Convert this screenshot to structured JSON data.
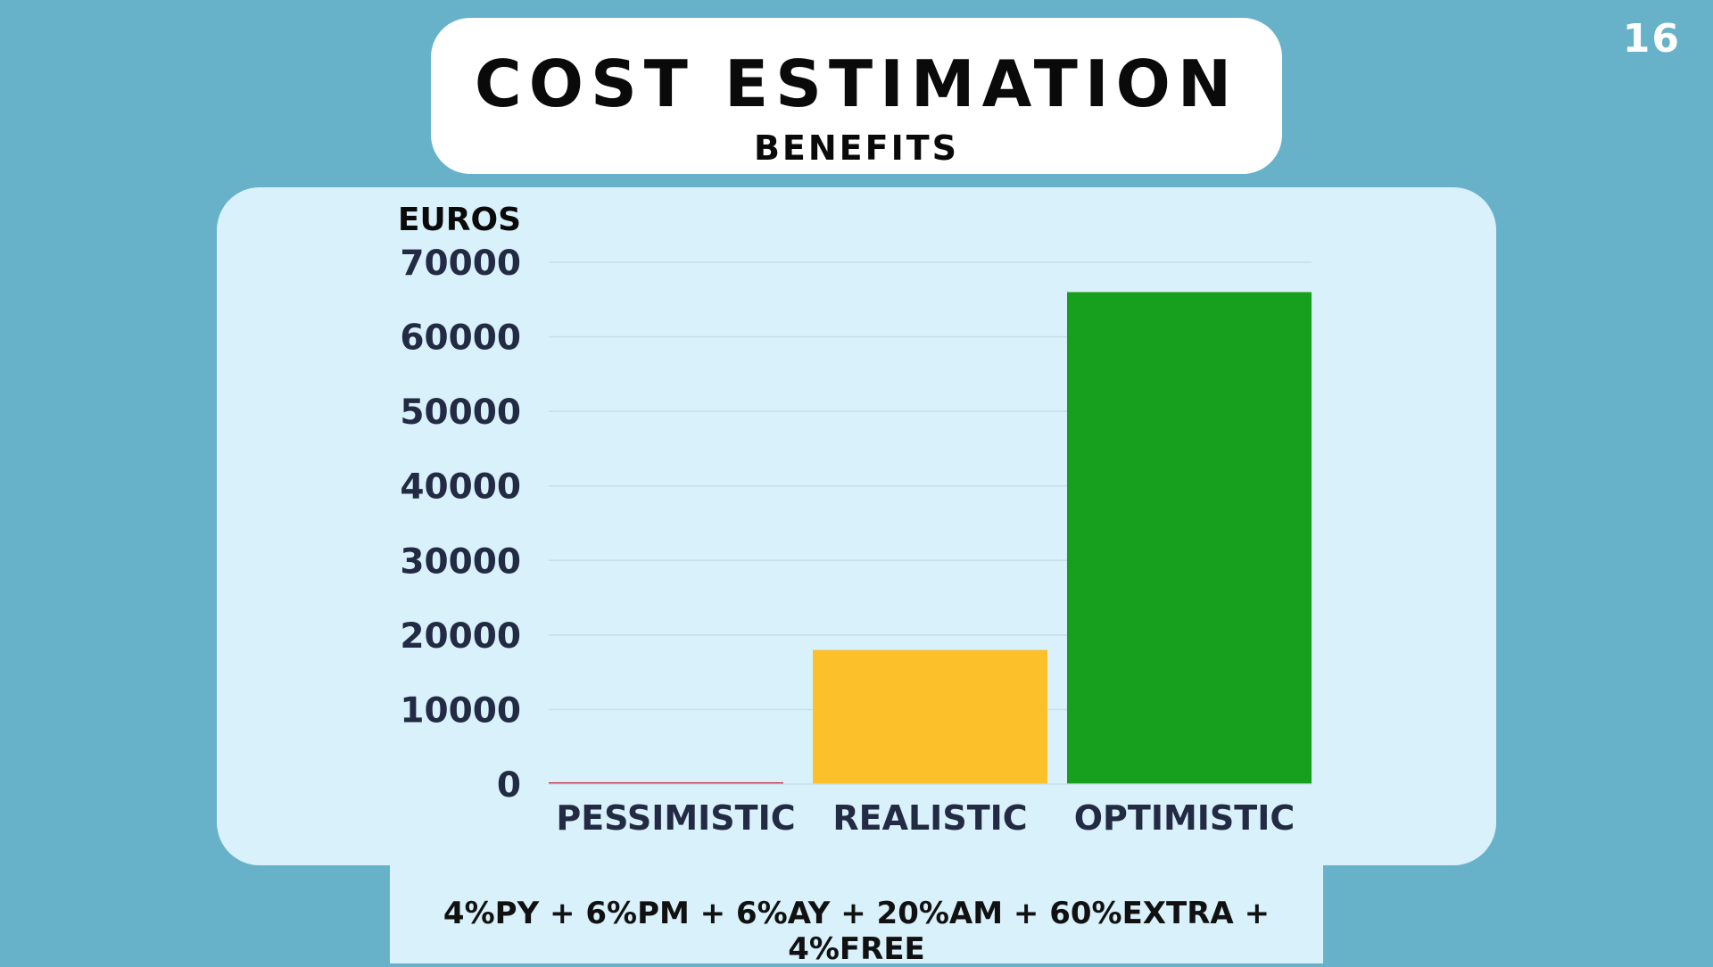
{
  "page_number": "16",
  "title": "COST ESTIMATION",
  "subtitle": "BENEFITS",
  "formula": "4%PY + 6%PM + 6%AY + 20%AM + 60%EXTRA + 4%FREE",
  "chart_data": {
    "type": "bar",
    "title": "",
    "xlabel": "",
    "ylabel": "EUROS",
    "categories": [
      "PESSIMISTIC",
      "REALISTIC",
      "OPTIMISTIC"
    ],
    "values": [
      150,
      18000,
      66000
    ],
    "colors": [
      "#c8233c",
      "#fbc02a",
      "#16a01e"
    ],
    "ylim": [
      0,
      70000
    ],
    "yticks": [
      "0",
      "10000",
      "20000",
      "30000",
      "40000",
      "50000",
      "60000",
      "70000"
    ],
    "grid": true
  }
}
